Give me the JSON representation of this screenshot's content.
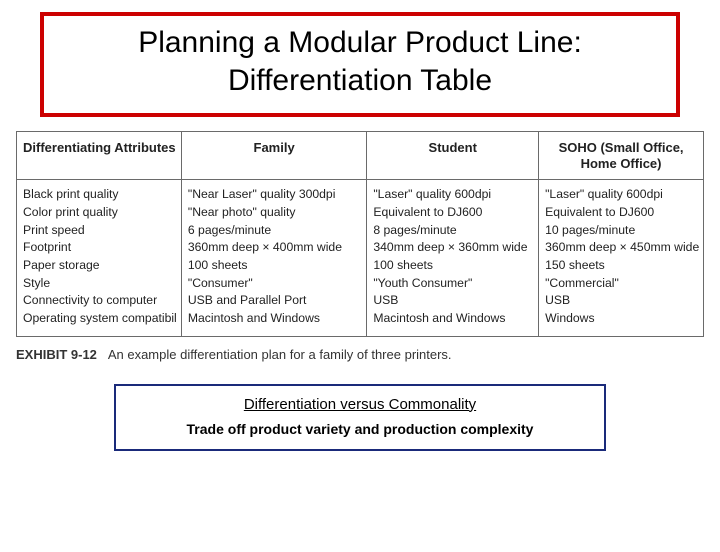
{
  "title": {
    "line1": "Planning a Modular Product Line:",
    "line2": "Differentiation Table"
  },
  "colors": {
    "title_border": "#cc0000",
    "table_border": "#6a6a6a",
    "footer_border": "#1a2a7a",
    "background": "#ffffff",
    "text": "#000000"
  },
  "table": {
    "headers": [
      "Differentiating Attributes",
      "Family",
      "Student",
      "SOHO (Small Office, Home Office)"
    ],
    "attributes": [
      "Black print quality",
      "Color print quality",
      "Print speed",
      "Footprint",
      "Paper storage",
      "Style",
      "Connectivity to computer",
      "Operating system compatibility"
    ],
    "family": [
      "\"Near Laser\" quality 300dpi",
      "\"Near photo\" quality",
      "6 pages/minute",
      "360mm deep × 400mm wide",
      "100 sheets",
      "\"Consumer\"",
      "USB and Parallel Port",
      "Macintosh and Windows"
    ],
    "student": [
      "\"Laser\" quality 600dpi",
      "Equivalent to DJ600",
      "8 pages/minute",
      "340mm deep × 360mm wide",
      "100 sheets",
      "\"Youth Consumer\"",
      "USB",
      "Macintosh and Windows"
    ],
    "soho": [
      "\"Laser\" quality 600dpi",
      "Equivalent to DJ600",
      "10 pages/minute",
      "360mm deep × 450mm wide",
      "150 sheets",
      "\"Commercial\"",
      "USB",
      "Windows"
    ]
  },
  "exhibit": {
    "label": "EXHIBIT 9-12",
    "caption": "An example differentiation plan for a family of three printers."
  },
  "footer": {
    "line1": "Differentiation versus Commonality",
    "line2": "Trade off product variety and production complexity"
  }
}
